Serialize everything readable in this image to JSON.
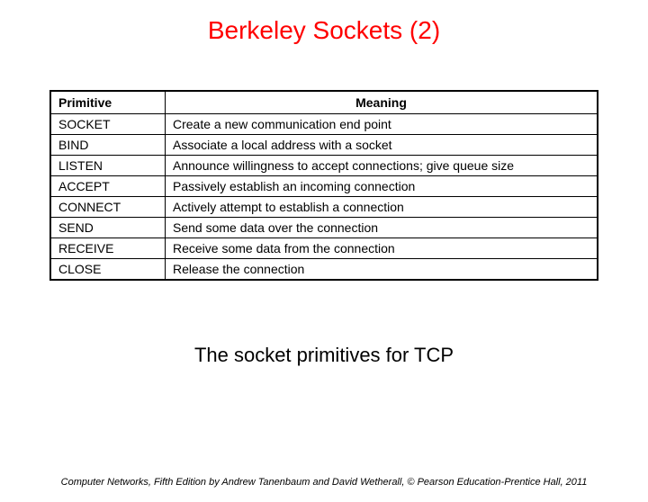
{
  "title": "Berkeley Sockets (2)",
  "title_color": "#ff0000",
  "table": {
    "columns": [
      "Primitive",
      "Meaning"
    ],
    "rows": [
      [
        "SOCKET",
        "Create a new communication end point"
      ],
      [
        "BIND",
        "Associate a local address with a socket"
      ],
      [
        "LISTEN",
        "Announce willingness to accept connections; give queue size"
      ],
      [
        "ACCEPT",
        "Passively establish an incoming connection"
      ],
      [
        "CONNECT",
        "Actively attempt to establish a connection"
      ],
      [
        "SEND",
        "Send some data over the connection"
      ],
      [
        "RECEIVE",
        "Receive some data from the connection"
      ],
      [
        "CLOSE",
        "Release the connection"
      ]
    ],
    "border_color": "#000000",
    "header_fontsize": 14,
    "cell_fontsize": 14
  },
  "caption": "The socket primitives for TCP",
  "footer": "Computer Networks, Fifth Edition by Andrew Tanenbaum and David Wetherall, © Pearson Education-Prentice Hall, 2011"
}
